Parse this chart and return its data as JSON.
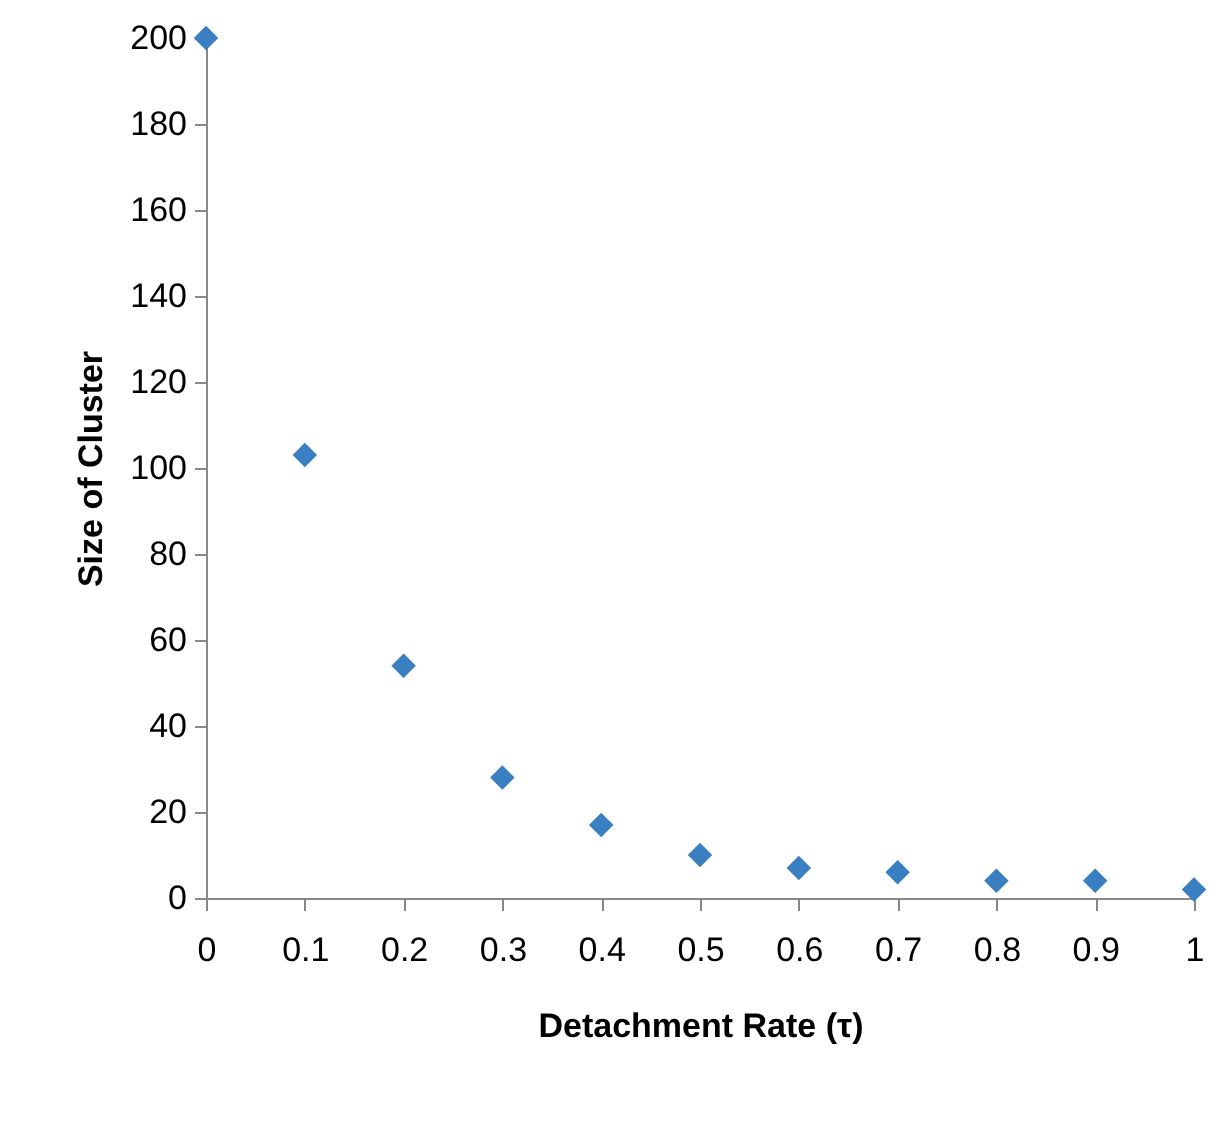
{
  "chart_data": {
    "type": "scatter",
    "xlabel": "Detachment Rate (τ)",
    "ylabel": "Size of Cluster",
    "x": [
      0,
      0.1,
      0.2,
      0.3,
      0.4,
      0.5,
      0.6,
      0.7,
      0.8,
      0.9,
      1
    ],
    "series": [
      {
        "color": "#3a7fc1",
        "values": [
          200,
          103,
          54,
          28,
          17,
          10,
          7,
          6,
          4,
          4,
          2
        ]
      }
    ],
    "xlim": [
      0,
      1
    ],
    "xticks": [
      0,
      0.1,
      0.2,
      0.3,
      0.4,
      0.5,
      0.6,
      0.7,
      0.8,
      0.9,
      1
    ],
    "ylim": [
      0,
      200
    ],
    "yticks": [
      0,
      20,
      40,
      60,
      80,
      100,
      120,
      140,
      160,
      180,
      200
    ],
    "grid": false,
    "marker": "diamond"
  }
}
